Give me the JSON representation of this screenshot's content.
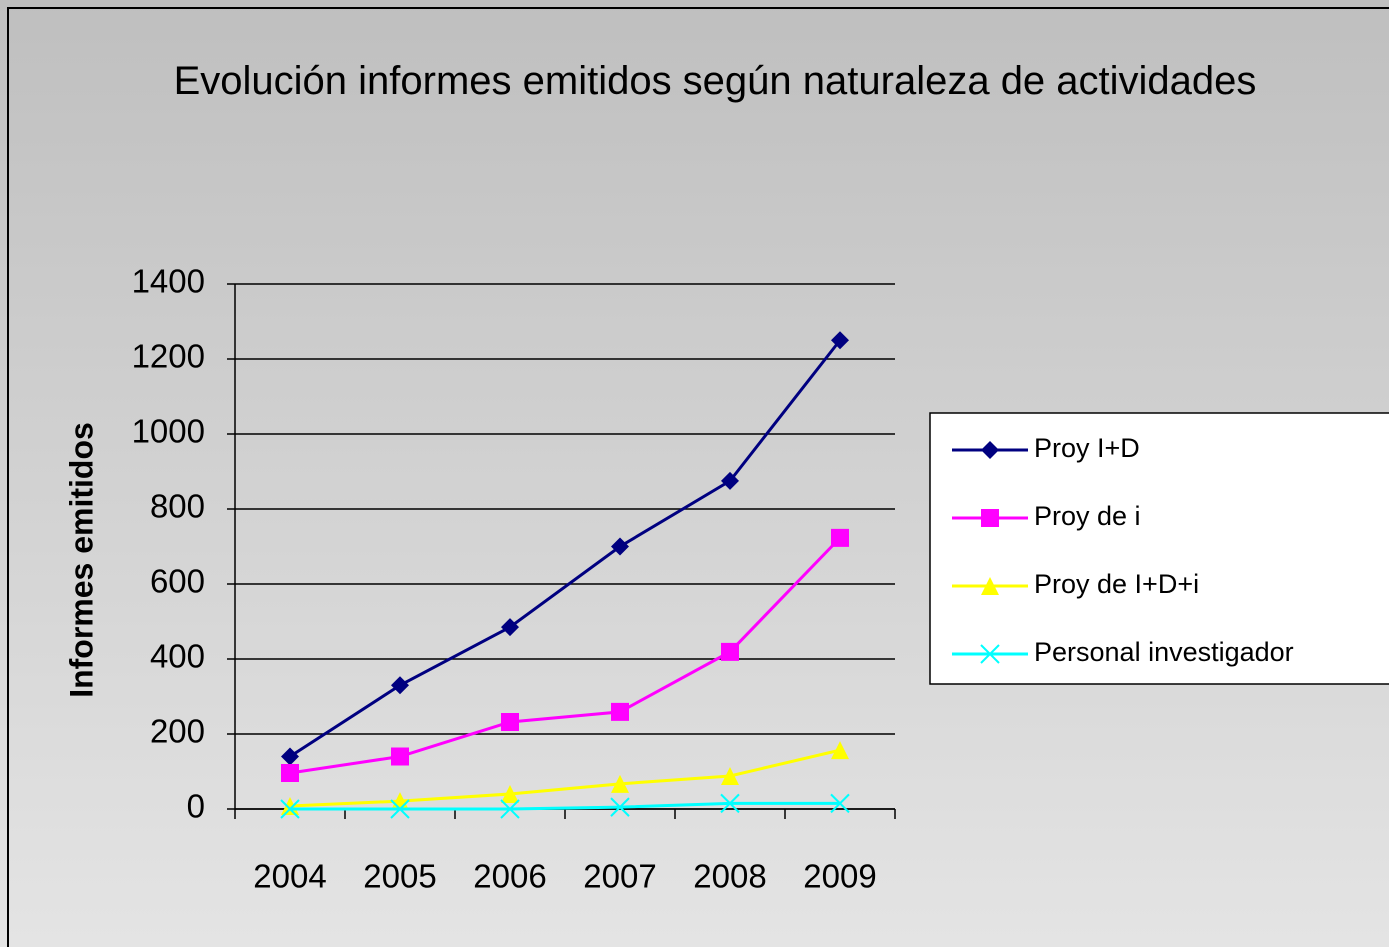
{
  "chart_data": {
    "type": "line",
    "title": "Evolución informes emitidos según naturaleza de actividades",
    "y_label": "Informes emitidos",
    "categories": [
      "2004",
      "2005",
      "2006",
      "2007",
      "2008",
      "2009"
    ],
    "series": [
      {
        "name": "Proy I+D",
        "color": "#000080",
        "marker": "diamond",
        "values": [
          140,
          330,
          485,
          700,
          875,
          1250
        ]
      },
      {
        "name": "Proy de i",
        "color": "#ff00ff",
        "marker": "square",
        "values": [
          96,
          140,
          232,
          259,
          419,
          723
        ]
      },
      {
        "name": "Proy de I+D+i",
        "color": "#ffff00",
        "marker": "triangle",
        "values": [
          8,
          21,
          40,
          67,
          88,
          157
        ]
      },
      {
        "name": "Personal investigador",
        "color": "#00ffff",
        "marker": "x",
        "values": [
          0,
          0,
          0,
          5,
          15,
          15
        ]
      }
    ],
    "ylim": [
      0,
      1400
    ],
    "yticks": [
      0,
      200,
      400,
      600,
      800,
      1000,
      1200,
      1400
    ],
    "grid": true,
    "legend": "right"
  }
}
